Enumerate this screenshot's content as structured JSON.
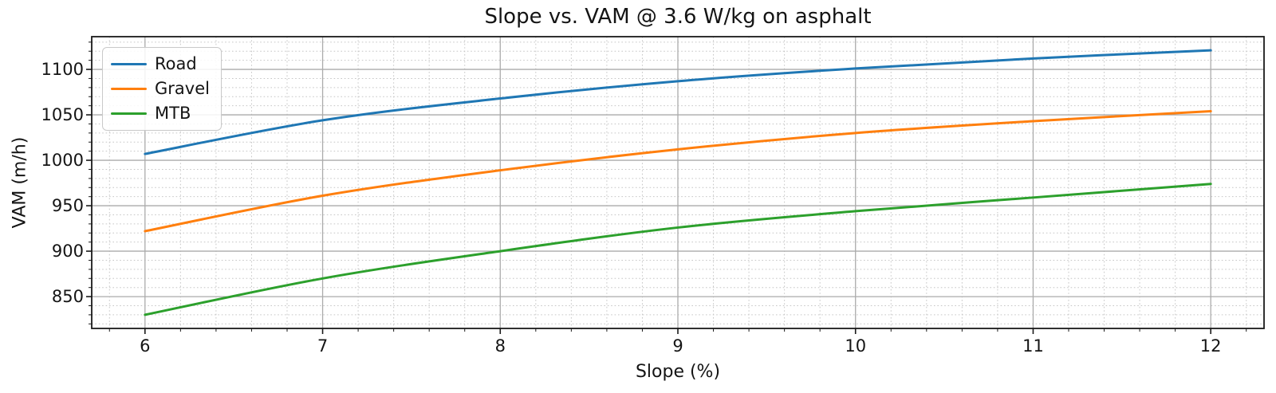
{
  "chart_data": {
    "type": "line",
    "title": "Slope vs. VAM @ 3.6 W/kg on asphalt",
    "xlabel": "Slope (%)",
    "ylabel": "VAM (m/h)",
    "x": [
      6,
      7,
      8,
      9,
      10,
      11,
      12
    ],
    "series": [
      {
        "name": "Road",
        "color": "#1f77b4",
        "values": [
          1007,
          1044,
          1068,
          1087,
          1101,
          1112,
          1121
        ]
      },
      {
        "name": "Gravel",
        "color": "#ff7f0e",
        "values": [
          922,
          961,
          989,
          1012,
          1030,
          1043,
          1054
        ]
      },
      {
        "name": "MTB",
        "color": "#2ca02c",
        "values": [
          830,
          870,
          900,
          926,
          944,
          959,
          974
        ]
      }
    ],
    "xlim": [
      5.7,
      12.3
    ],
    "ylim": [
      815,
      1136
    ],
    "xticks": [
      6,
      7,
      8,
      9,
      10,
      11,
      12
    ],
    "yticks": [
      850,
      900,
      950,
      1000,
      1050,
      1100
    ],
    "x_minor_step": 0.2,
    "y_minor_step": 10,
    "grid": {
      "major_color": "#ababab",
      "minor_color": "#c6c6c6",
      "minor_style": "dotted",
      "major_style": "solid"
    },
    "legend": {
      "position": "upper left"
    },
    "colors": {
      "axis": "#1a1a1a",
      "text": "#141414",
      "background": "#ffffff"
    }
  }
}
